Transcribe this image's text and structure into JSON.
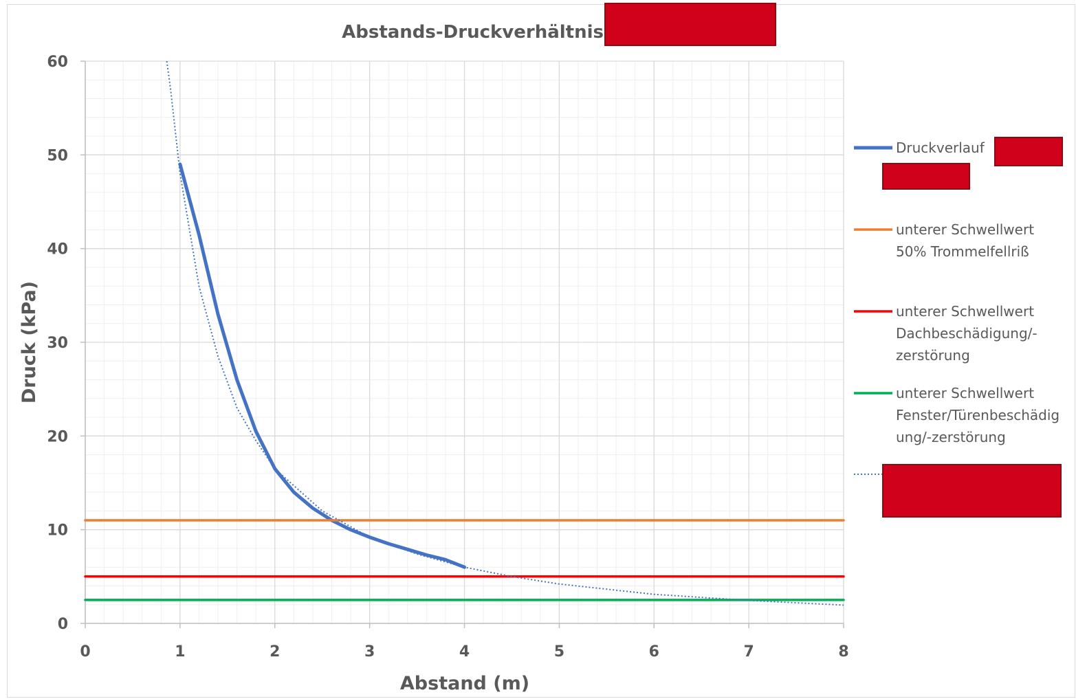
{
  "chart_data": {
    "type": "line",
    "title": "Abstands-Druckverhältnis",
    "xlabel": "Abstand (m)",
    "ylabel": "Druck (kPa)",
    "xlim": [
      0,
      8
    ],
    "ylim": [
      0,
      60
    ],
    "x_ticks": [
      "0",
      "1",
      "2",
      "3",
      "4",
      "5",
      "6",
      "7",
      "8"
    ],
    "y_ticks": [
      "0",
      "10",
      "20",
      "30",
      "40",
      "50",
      "60"
    ],
    "grid": true,
    "legend_position": "right",
    "series": [
      {
        "name": "Druckverlauf",
        "style": "solid",
        "color": "#4472c4",
        "x": [
          1.0,
          1.2,
          1.4,
          1.6,
          1.8,
          2.0,
          2.2,
          2.4,
          2.6,
          2.8,
          3.0,
          3.2,
          3.4,
          3.6,
          3.8,
          4.0
        ],
        "y": [
          49.0,
          41.5,
          33.0,
          26.0,
          20.5,
          16.5,
          14.0,
          12.3,
          11.0,
          10.0,
          9.2,
          8.5,
          7.9,
          7.3,
          6.8,
          6.0
        ]
      },
      {
        "name": "unterer Schwellwert 50% Trommelfellriß",
        "style": "solid",
        "color": "#ed7d31",
        "x": [
          0,
          8
        ],
        "y": [
          11,
          11
        ]
      },
      {
        "name": "unterer Schwellwert Dachbeschädigung/-zerstörung",
        "style": "solid",
        "color": "#ff0000",
        "x": [
          0,
          8
        ],
        "y": [
          5,
          5
        ]
      },
      {
        "name": "unterer Schwellwert Fenster/Türenbeschädigung/-zerstörung",
        "style": "solid",
        "color": "#00b050",
        "x": [
          0,
          8
        ],
        "y": [
          2.5,
          2.5
        ]
      },
      {
        "name": "",
        "style": "dotted",
        "color": "#4472c4",
        "x": [
          0.86,
          0.9,
          1.0,
          1.2,
          1.4,
          1.6,
          1.8,
          2.0,
          2.5,
          3.0,
          3.5,
          4.0,
          4.5,
          5.0,
          6.0,
          7.0,
          8.0
        ],
        "y": [
          60,
          57,
          48,
          36,
          28.5,
          23,
          19.5,
          16.5,
          12,
          9.2,
          7.4,
          6.0,
          5.0,
          4.2,
          3.1,
          2.45,
          1.95
        ]
      }
    ],
    "legend": [
      {
        "lines": [
          "Druckverlauf"
        ]
      },
      {
        "lines": [
          "unterer Schwellwert",
          "50% Trommelfellriß"
        ]
      },
      {
        "lines": [
          "unterer Schwellwert",
          "Dachbeschädigung/-",
          "zerstörung"
        ]
      },
      {
        "lines": [
          "unterer Schwellwert",
          "Fenster/Türenbeschädig",
          "ung/-zerstörung"
        ]
      },
      {
        "lines": []
      }
    ],
    "colors": {
      "grid_major": "#d9d9d9",
      "grid_minor": "#efefef",
      "axis": "#bfbfbf",
      "redaction": "#d0021b"
    }
  }
}
